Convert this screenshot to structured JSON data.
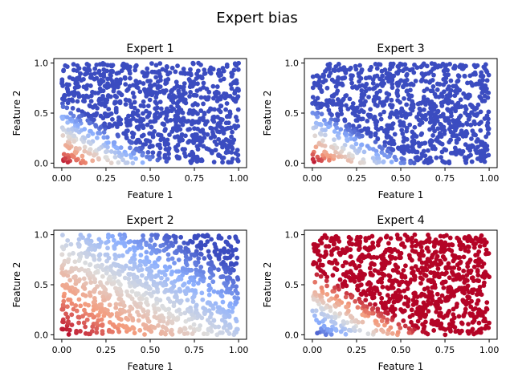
{
  "figure_title": "Expert bias",
  "colormap": "coolwarm",
  "colormap_stops": [
    "#3b4cc0",
    "#8db0fe",
    "#dddddd",
    "#f49a7b",
    "#b40426"
  ],
  "panels": [
    {
      "key": "e1",
      "title": "Expert 1",
      "xlabel": "Feature 1",
      "ylabel": "Feature 2"
    },
    {
      "key": "e3",
      "title": "Expert 3",
      "xlabel": "Feature 1",
      "ylabel": "Feature 2"
    },
    {
      "key": "e2",
      "title": "Expert 2",
      "xlabel": "Feature 1",
      "ylabel": "Feature 2"
    },
    {
      "key": "e4",
      "title": "Expert 4",
      "xlabel": "Feature 1",
      "ylabel": "Feature 2"
    }
  ],
  "chart_data": {
    "type": "scatter",
    "title": "Expert bias",
    "n_points_per_panel": 1000,
    "x_range": [
      0,
      1
    ],
    "y_range": [
      0,
      1
    ],
    "xlim": [
      -0.045,
      1.045
    ],
    "ylim": [
      -0.045,
      1.045
    ],
    "xticks": [
      0.0,
      0.25,
      0.5,
      0.75,
      1.0
    ],
    "xtick_labels": [
      "0.00",
      "0.25",
      "0.50",
      "0.75",
      "1.00"
    ],
    "yticks": [
      0.0,
      0.5,
      1.0
    ],
    "ytick_labels": [
      "0.0",
      "0.5",
      "1.0"
    ],
    "color_scale": "coolwarm",
    "panels": [
      {
        "title": "Expert 1",
        "xlabel": "Feature 1",
        "ylabel": "Feature 2",
        "color_value": "1 - min(1, 1.6*(x+y))",
        "note": "red near origin, blue elsewhere"
      },
      {
        "title": "Expert 3",
        "xlabel": "Feature 1",
        "ylabel": "Feature 2",
        "color_value": "1 - min(1, 1.65*(x+y))",
        "note": "red near origin, blue elsewhere"
      },
      {
        "title": "Expert 2",
        "xlabel": "Feature 1",
        "ylabel": "Feature 2",
        "color_value": "1 - 0.6*(x+y)",
        "note": "red bottom-left, blue top-right gradient"
      },
      {
        "title": "Expert 4",
        "xlabel": "Feature 1",
        "ylabel": "Feature 2",
        "color_value": "min(1, 1.5*(x+y))",
        "note": "blue near origin, red elsewhere"
      }
    ]
  }
}
